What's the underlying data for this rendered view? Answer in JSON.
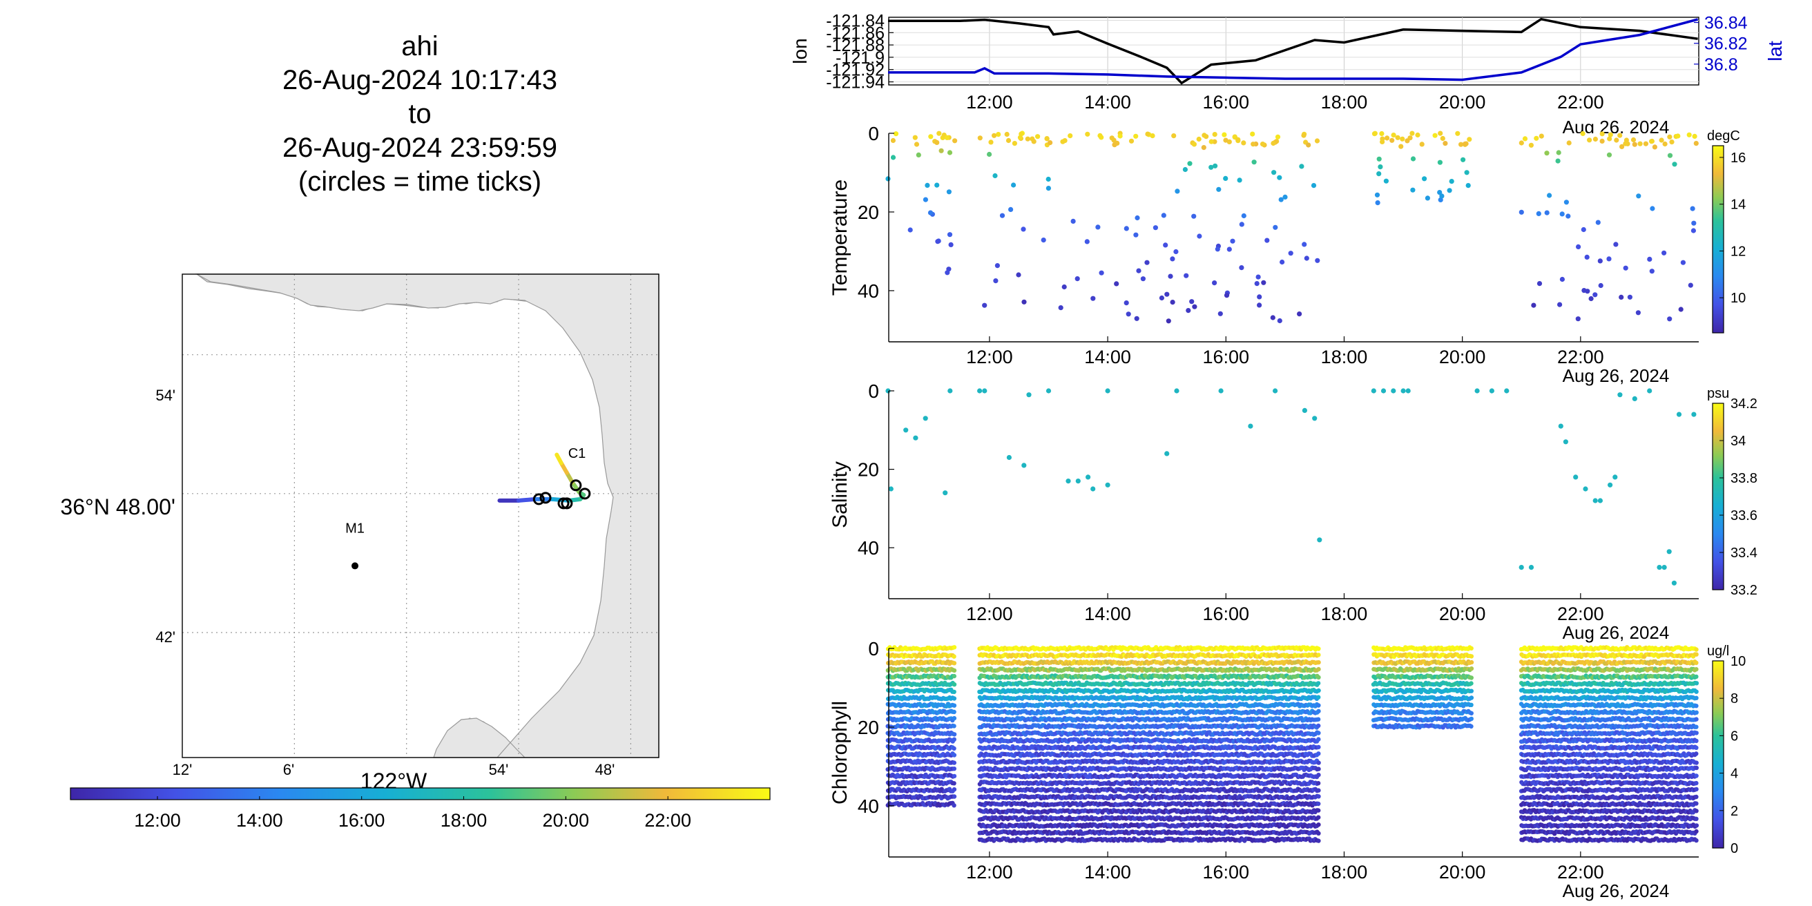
{
  "title": {
    "lines": [
      "ahi",
      "26-Aug-2024 10:17:43",
      "to",
      "26-Aug-2024 23:59:59",
      "(circles = time ticks)"
    ]
  },
  "colors": {
    "lat": "#0000cc",
    "lon": "#000000",
    "land": "#e6e6e6",
    "track_early": "#2a9de0",
    "track_late": "#f2d630"
  },
  "time_axis": {
    "range": [
      "10:17:43",
      "23:59:59"
    ],
    "tick_labels": [
      "12:00",
      "14:00",
      "16:00",
      "18:00",
      "20:00",
      "22:00"
    ],
    "date_label": "Aug 26, 2024"
  },
  "map": {
    "lat_tick_labels": [
      "54'",
      "36°N 48.00'",
      "42'"
    ],
    "lon_tick_labels": [
      "12'",
      "6'",
      "122°W",
      "54'",
      "48'"
    ],
    "lon_axis_label": "122°W",
    "lat_axis_label": "36°N 48.00'",
    "stations": [
      {
        "label": "M1",
        "lon": -122.046,
        "lat": 36.748
      },
      {
        "label": "C1",
        "lon": -121.848,
        "lat": 36.802
      }
    ],
    "time_tick_circles": [
      {
        "lon": -121.882,
        "lat": 36.796
      },
      {
        "lon": -121.876,
        "lat": 36.797
      },
      {
        "lon": -121.86,
        "lat": 36.793
      },
      {
        "lon": -121.857,
        "lat": 36.793
      },
      {
        "lon": -121.849,
        "lat": 36.806
      },
      {
        "lon": -121.841,
        "lat": 36.8
      }
    ],
    "colorbar_tick_labels": [
      "12:00",
      "14:00",
      "16:00",
      "18:00",
      "20:00",
      "22:00"
    ]
  },
  "chart_data": [
    {
      "type": "line",
      "name": "position",
      "ylabel_left": "lon",
      "ylabel_right": "lat",
      "left_tick_labels": [
        "-121.84",
        "-121.86",
        "-121.88",
        "-121.9",
        "-121.92",
        "-121.94"
      ],
      "right_tick_labels": [
        "36.84",
        "36.82",
        "36.8"
      ],
      "ylim_left": [
        -121.945,
        -121.835
      ],
      "ylim_right": [
        36.78,
        36.845
      ],
      "grid": true,
      "series": [
        {
          "name": "lon",
          "x": [
            "10:17",
            "11:30",
            "11:55",
            "12:30",
            "13:00",
            "13:05",
            "13:30",
            "14:00",
            "14:30",
            "15:00",
            "15:15",
            "15:45",
            "16:30",
            "17:30",
            "18:00",
            "19:00",
            "20:00",
            "21:00",
            "21:20",
            "22:00",
            "23:00",
            "23:59"
          ],
          "y": [
            -121.841,
            -121.841,
            -121.839,
            -121.845,
            -121.851,
            -121.863,
            -121.858,
            -121.878,
            -121.897,
            -121.917,
            -121.942,
            -121.912,
            -121.905,
            -121.872,
            -121.876,
            -121.855,
            -121.857,
            -121.859,
            -121.838,
            -121.851,
            -121.857,
            -121.87
          ]
        },
        {
          "name": "lat",
          "x": [
            "10:17",
            "11:45",
            "11:55",
            "12:05",
            "13:00",
            "14:00",
            "15:00",
            "16:00",
            "17:00",
            "18:00",
            "19:00",
            "20:00",
            "21:00",
            "21:40",
            "22:00",
            "23:00",
            "23:59"
          ],
          "y": [
            36.792,
            36.792,
            36.796,
            36.791,
            36.791,
            36.79,
            36.788,
            36.787,
            36.786,
            36.786,
            36.786,
            36.785,
            36.792,
            36.807,
            36.819,
            36.828,
            36.843
          ]
        }
      ]
    },
    {
      "type": "scatter",
      "name": "temperature",
      "ylabel": "Temperature",
      "ylim": [
        53,
        0
      ],
      "y_tick_labels": [
        "0",
        "20",
        "40"
      ],
      "colorbar": {
        "unit": "degC",
        "range": [
          8.5,
          16.5
        ],
        "tick_labels": [
          "16",
          "14",
          "12",
          "10"
        ]
      },
      "color_field": "temperature (degC)",
      "depth_vs_temperature": [
        [
          0,
          16
        ],
        [
          3,
          15.5
        ],
        [
          6,
          13.5
        ],
        [
          10,
          12.5
        ],
        [
          15,
          11.5
        ],
        [
          20,
          10.5
        ],
        [
          30,
          9.5
        ],
        [
          45,
          9
        ]
      ],
      "segments": [
        {
          "start": "10:17",
          "end": "11:25",
          "max_depth": 40
        },
        {
          "start": "11:50",
          "end": "17:35",
          "max_depth": 48
        },
        {
          "start": "18:30",
          "end": "20:10",
          "max_depth": 18
        },
        {
          "start": "21:00",
          "end": "23:59",
          "max_depth": 50
        }
      ]
    },
    {
      "type": "scatter",
      "name": "salinity",
      "ylabel": "Salinity",
      "ylim": [
        53,
        0
      ],
      "y_tick_labels": [
        "0",
        "20",
        "40"
      ],
      "colorbar": {
        "unit": "psu",
        "range": [
          33.2,
          34.2
        ],
        "tick_labels": [
          "34.2",
          "34",
          "33.8",
          "33.6",
          "33.4",
          "33.2"
        ]
      },
      "color_field": "salinity (psu)",
      "points": [
        [
          "10:17",
          0,
          33.7
        ],
        [
          "10:20",
          25,
          33.7
        ],
        [
          "10:35",
          10,
          33.7
        ],
        [
          "10:45",
          12,
          33.7
        ],
        [
          "10:55",
          7,
          33.7
        ],
        [
          "11:15",
          26,
          33.7
        ],
        [
          "11:20",
          0,
          33.7
        ],
        [
          "11:50",
          0,
          33.7
        ],
        [
          "11:55",
          0,
          33.7
        ],
        [
          "12:20",
          17,
          33.7
        ],
        [
          "12:35",
          19,
          33.7
        ],
        [
          "12:40",
          1,
          33.7
        ],
        [
          "13:00",
          0,
          33.7
        ],
        [
          "13:20",
          23,
          33.7
        ],
        [
          "13:30",
          23,
          33.7
        ],
        [
          "13:40",
          22,
          33.7
        ],
        [
          "13:45",
          25,
          33.7
        ],
        [
          "14:00",
          24,
          33.7
        ],
        [
          "14:00",
          0,
          33.7
        ],
        [
          "15:00",
          16,
          33.7
        ],
        [
          "15:10",
          0,
          33.7
        ],
        [
          "15:55",
          0,
          33.7
        ],
        [
          "16:25",
          9,
          33.7
        ],
        [
          "16:50",
          0,
          33.7
        ],
        [
          "17:20",
          5,
          33.7
        ],
        [
          "17:30",
          7,
          33.7
        ],
        [
          "17:35",
          38,
          33.7
        ],
        [
          "18:30",
          0,
          33.7
        ],
        [
          "18:40",
          0,
          33.7
        ],
        [
          "18:50",
          0,
          33.7
        ],
        [
          "19:00",
          0,
          33.7
        ],
        [
          "19:05",
          0,
          33.7
        ],
        [
          "20:15",
          0,
          33.7
        ],
        [
          "20:30",
          0,
          33.7
        ],
        [
          "20:45",
          0,
          33.7
        ],
        [
          "21:00",
          45,
          33.7
        ],
        [
          "21:10",
          45,
          33.7
        ],
        [
          "21:40",
          9,
          33.7
        ],
        [
          "21:45",
          13,
          33.7
        ],
        [
          "21:55",
          22,
          33.7
        ],
        [
          "22:05",
          25,
          33.7
        ],
        [
          "22:15",
          28,
          33.7
        ],
        [
          "22:20",
          28,
          33.7
        ],
        [
          "22:30",
          24,
          33.7
        ],
        [
          "22:35",
          22,
          33.7
        ],
        [
          "22:40",
          1,
          33.7
        ],
        [
          "22:55",
          2,
          33.7
        ],
        [
          "23:10",
          0,
          33.7
        ],
        [
          "23:20",
          45,
          33.7
        ],
        [
          "23:25",
          45,
          33.7
        ],
        [
          "23:30",
          41,
          33.7
        ],
        [
          "23:35",
          49,
          33.7
        ],
        [
          "23:40",
          6,
          33.7
        ],
        [
          "23:55",
          6,
          33.7
        ]
      ]
    },
    {
      "type": "scatter",
      "name": "chlorophyll",
      "ylabel": "Chlorophyll",
      "ylim": [
        53,
        0
      ],
      "y_tick_labels": [
        "0",
        "20",
        "40"
      ],
      "colorbar": {
        "unit": "ug/l",
        "range": [
          0,
          10
        ],
        "tick_labels": [
          "10",
          "8",
          "6",
          "4",
          "2",
          "0"
        ]
      },
      "color_field": "chlorophyll (ug/l)",
      "depth_vs_chlorophyll": [
        [
          0,
          10
        ],
        [
          3,
          9
        ],
        [
          6,
          7
        ],
        [
          10,
          5
        ],
        [
          15,
          3
        ],
        [
          25,
          1.5
        ],
        [
          40,
          0.5
        ],
        [
          50,
          0.3
        ]
      ],
      "segments": [
        {
          "start": "10:17",
          "end": "11:25",
          "max_depth": 40
        },
        {
          "start": "11:50",
          "end": "17:35",
          "max_depth": 50
        },
        {
          "start": "18:30",
          "end": "20:10",
          "max_depth": 20
        },
        {
          "start": "21:00",
          "end": "23:59",
          "max_depth": 50
        }
      ]
    }
  ]
}
